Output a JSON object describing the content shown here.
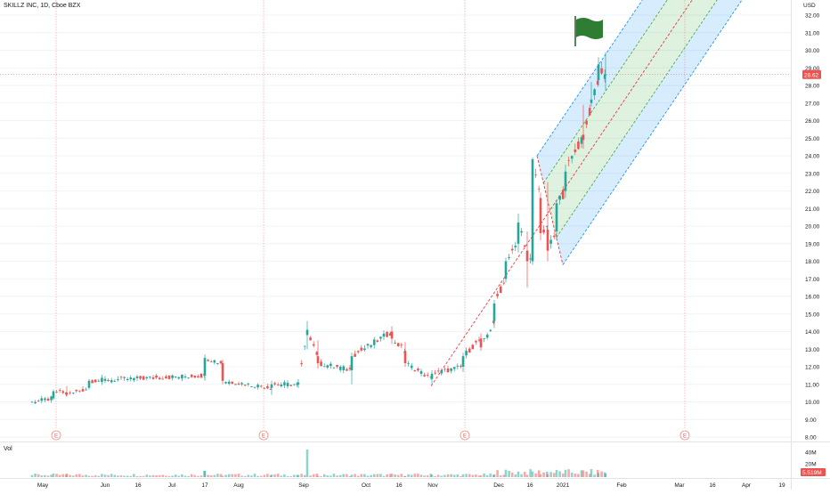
{
  "header": {
    "symbol_line": "SKILLZ INC, 1D, Cboe BZX",
    "currency": "USD",
    "volume_label": "Vol"
  },
  "colors": {
    "up": "#26a69a",
    "down": "#ef5350",
    "flag": "#2e7d32",
    "channel_outer": "#2196f3",
    "channel_inner": "#4caf50",
    "median": "#f23645"
  },
  "chart_data": {
    "type": "candlestick",
    "y_axis": {
      "ylim": [
        8,
        32.5
      ],
      "ticks": [
        "8.00",
        "9.00",
        "10.00",
        "11.00",
        "12.00",
        "13.00",
        "14.00",
        "15.00",
        "16.00",
        "17.00",
        "18.00",
        "19.00",
        "20.00",
        "21.00",
        "22.00",
        "23.00",
        "24.00",
        "25.00",
        "26.00",
        "27.00",
        "28.00",
        "29.00",
        "30.00",
        "31.00",
        "32.00"
      ]
    },
    "x_axis": {
      "labels": [
        "May",
        "Jun",
        "16",
        "Jul",
        "17",
        "Aug",
        "Sep",
        "Oct",
        "16",
        "Nov",
        "Dec",
        "16",
        "2021",
        "Feb",
        "Mar",
        "16",
        "Apr",
        "19"
      ]
    },
    "last_price": "28.62",
    "last_volume": "5.519M",
    "volume_ticks": [
      "40M",
      "20M"
    ],
    "earnings_markers": [
      "E",
      "E",
      "E",
      "E"
    ],
    "daily_ohlc_sample": [
      {
        "open": 10.0,
        "high": 10.05,
        "low": 9.95,
        "close": 10.0
      },
      {
        "open": 10.2,
        "high": 10.7,
        "low": 10.1,
        "close": 10.6
      },
      {
        "open": 10.5,
        "high": 10.9,
        "low": 10.3,
        "close": 10.4
      },
      {
        "open": 10.8,
        "high": 11.3,
        "low": 10.7,
        "close": 11.2
      },
      {
        "open": 11.5,
        "high": 12.7,
        "low": 11.2,
        "close": 12.5
      },
      {
        "open": 12.2,
        "high": 12.4,
        "low": 11.0,
        "close": 11.2
      },
      {
        "open": 10.8,
        "high": 11.2,
        "low": 10.4,
        "close": 11.0
      },
      {
        "open": 11.0,
        "high": 11.3,
        "low": 10.8,
        "close": 11.1
      },
      {
        "open": 13.8,
        "high": 14.6,
        "low": 13.0,
        "close": 14.1
      },
      {
        "open": 12.6,
        "high": 13.5,
        "low": 11.9,
        "close": 12.2
      },
      {
        "open": 11.8,
        "high": 12.8,
        "low": 11.0,
        "close": 12.6
      },
      {
        "open": 14.0,
        "high": 14.3,
        "low": 13.3,
        "close": 13.6
      },
      {
        "open": 12.9,
        "high": 13.4,
        "low": 12.0,
        "close": 12.2
      },
      {
        "open": 11.3,
        "high": 11.8,
        "low": 11.0,
        "close": 11.6
      },
      {
        "open": 12.0,
        "high": 12.8,
        "low": 11.7,
        "close": 12.6
      },
      {
        "open": 13.6,
        "high": 13.9,
        "low": 12.9,
        "close": 13.1
      },
      {
        "open": 14.6,
        "high": 15.8,
        "low": 14.2,
        "close": 15.6
      },
      {
        "open": 17.0,
        "high": 18.2,
        "low": 16.8,
        "close": 18.0
      },
      {
        "open": 19.0,
        "high": 20.7,
        "low": 18.5,
        "close": 20.2
      },
      {
        "open": 18.6,
        "high": 19.7,
        "low": 16.5,
        "close": 18.0
      },
      {
        "open": 18.0,
        "high": 23.9,
        "low": 17.8,
        "close": 23.8
      },
      {
        "open": 21.6,
        "high": 21.9,
        "low": 19.2,
        "close": 19.6
      },
      {
        "open": 19.8,
        "high": 22.5,
        "low": 18.0,
        "close": 18.6
      },
      {
        "open": 19.7,
        "high": 21.5,
        "low": 19.2,
        "close": 21.3
      },
      {
        "open": 22.0,
        "high": 23.5,
        "low": 21.6,
        "close": 23.1
      },
      {
        "open": 25.2,
        "high": 26.9,
        "low": 24.4,
        "close": 24.9
      },
      {
        "open": 27.0,
        "high": 28.2,
        "low": 26.8,
        "close": 27.2
      },
      {
        "open": 28.3,
        "high": 29.6,
        "low": 28.0,
        "close": 29.2
      },
      {
        "open": 28.6,
        "high": 29.9,
        "low": 27.7,
        "close": 28.62
      }
    ]
  }
}
